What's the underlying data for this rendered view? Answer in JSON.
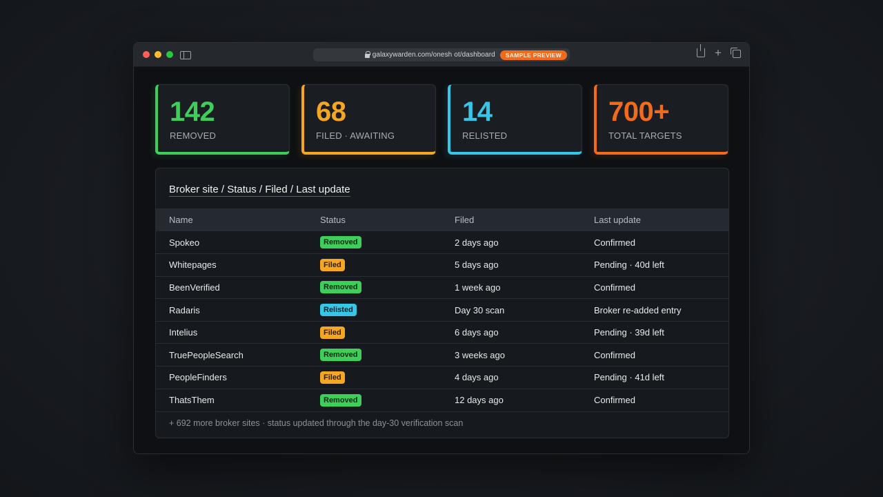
{
  "browser": {
    "url": "galaxywarden.com/onesh ot/dashboard",
    "sample_label": "SAMPLE PREVIEW"
  },
  "stats": [
    {
      "value": "142",
      "label": "REMOVED",
      "color": "#3ecf5a"
    },
    {
      "value": "68",
      "label": "FILED · AWAITING",
      "color": "#f5a623"
    },
    {
      "value": "14",
      "label": "RELISTED",
      "color": "#35c6e8"
    },
    {
      "value": "700+",
      "label": "TOTAL TARGETS",
      "color": "#f26a1b"
    }
  ],
  "panel": {
    "title": "Broker site / Status / Filed / Last update",
    "columns": [
      "Name",
      "Status",
      "Filed",
      "Last update"
    ],
    "rows": [
      {
        "name": "Spokeo",
        "status": "Removed",
        "filed": "2 days ago",
        "update": "Confirmed"
      },
      {
        "name": "Whitepages",
        "status": "Filed",
        "filed": "5 days ago",
        "update": "Pending · 40d left"
      },
      {
        "name": "BeenVerified",
        "status": "Removed",
        "filed": "1 week ago",
        "update": "Confirmed"
      },
      {
        "name": "Radaris",
        "status": "Relisted",
        "filed": "Day 30 scan",
        "update": "Broker re-added entry"
      },
      {
        "name": "Intelius",
        "status": "Filed",
        "filed": "6 days ago",
        "update": "Pending · 39d left"
      },
      {
        "name": "TruePeopleSearch",
        "status": "Removed",
        "filed": "3 weeks ago",
        "update": "Confirmed"
      },
      {
        "name": "PeopleFinders",
        "status": "Filed",
        "filed": "4 days ago",
        "update": "Pending · 41d left"
      },
      {
        "name": "ThatsThem",
        "status": "Removed",
        "filed": "12 days ago",
        "update": "Confirmed"
      }
    ],
    "footer": "+ 692 more broker sites · status updated through the day-30 verification scan"
  },
  "status_colors": {
    "Removed": {
      "bg": "#3ecf5a",
      "fg": "#0d2a12"
    },
    "Filed": {
      "bg": "#f5a623",
      "fg": "#2e1e02"
    },
    "Relisted": {
      "bg": "#35c6e8",
      "fg": "#06262e"
    }
  }
}
